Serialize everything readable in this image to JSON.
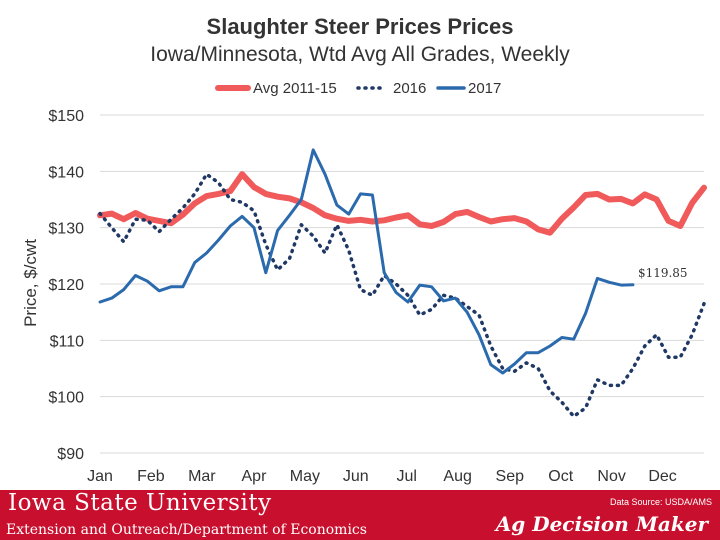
{
  "chart_data": {
    "type": "line",
    "title": "Slaughter Steer Prices Prices",
    "subtitle": "Iowa/Minnesota, Wtd Avg All Grades, Weekly",
    "ylabel": "Price, $/cwt",
    "xlabel": "",
    "ylim": [
      90,
      150
    ],
    "yticks": [
      90,
      100,
      110,
      120,
      130,
      140,
      150
    ],
    "ytick_labels": [
      "$90",
      "$100",
      "$110",
      "$120",
      "$130",
      "$140",
      "$150"
    ],
    "xlim": [
      1,
      52
    ],
    "xticks": [
      1,
      5.3,
      9.6,
      14,
      18.3,
      22.6,
      26.9,
      31.2,
      35.6,
      39.9,
      44.2,
      48.5
    ],
    "xtick_labels": [
      "Jan",
      "Feb",
      "Mar",
      "Apr",
      "May",
      "Jun",
      "Jul",
      "Aug",
      "Sep",
      "Oct",
      "Nov",
      "Dec"
    ],
    "legend_position": "top-center",
    "annotations": [
      {
        "text": "$119.85",
        "x": 46,
        "y": 119.85
      }
    ],
    "series": [
      {
        "name": "Avg 2011-15",
        "style": "solid-thick",
        "color": "#f05a5a",
        "values": [
          132.2,
          132.5,
          131.5,
          132.6,
          131.6,
          131.2,
          130.8,
          132.3,
          134.3,
          135.6,
          136.0,
          136.5,
          139.5,
          137.2,
          136.0,
          135.5,
          135.2,
          134.5,
          133.5,
          132.2,
          131.6,
          131.2,
          131.4,
          131.1,
          131.3,
          131.8,
          132.2,
          130.6,
          130.3,
          131.0,
          132.4,
          132.8,
          131.9,
          131.1,
          131.5,
          131.7,
          131.1,
          129.7,
          129.1,
          131.6,
          133.6,
          135.8,
          136.0,
          135.0,
          135.1,
          134.3,
          135.9,
          135.0,
          131.2,
          130.3,
          134.4,
          137.1
        ]
      },
      {
        "name": "2016",
        "style": "dotted",
        "color": "#1f3864",
        "values": [
          132.5,
          130.0,
          127.5,
          131.5,
          131.3,
          129.3,
          131.5,
          133.5,
          136.0,
          139.5,
          138.0,
          135.0,
          134.5,
          133.0,
          127.0,
          122.5,
          124.5,
          130.5,
          128.5,
          125.5,
          130.5,
          126.0,
          119.0,
          118.0,
          121.5,
          120.0,
          118.0,
          114.5,
          115.5,
          118.0,
          117.5,
          116.0,
          114.5,
          109.0,
          105.0,
          104.5,
          106.0,
          105.0,
          101.0,
          99.0,
          96.5,
          98.0,
          103.0,
          102.0,
          102.0,
          105.0,
          109.0,
          111.0,
          107.0,
          107.0,
          111.0,
          116.5
        ]
      },
      {
        "name": "2017",
        "style": "solid",
        "color": "#2a6aad",
        "values": [
          116.8,
          117.5,
          119.0,
          121.5,
          120.5,
          118.8,
          119.5,
          119.5,
          123.8,
          125.5,
          127.8,
          130.3,
          132.0,
          130.0,
          122.0,
          129.5,
          132.2,
          135.0,
          143.8,
          139.5,
          134.0,
          132.4,
          136.0,
          135.8,
          122.0,
          118.5,
          116.8,
          119.8,
          119.5,
          117.0,
          117.5,
          115.0,
          111.0,
          105.7,
          104.2,
          105.8,
          107.8,
          107.8,
          109.0,
          110.5,
          110.2,
          114.8,
          121.0,
          120.3,
          119.8,
          119.85
        ]
      }
    ]
  },
  "legend": {
    "items": [
      "Avg 2011-15",
      "2016",
      "2017"
    ]
  },
  "footer": {
    "university": "Iowa State University",
    "extension": "Extension and Outreach/Department of Economics",
    "source": "Data Source: USDA/AMS",
    "brand": "Ag Decision Maker"
  },
  "colors": {
    "footer_bg": "#c8102e",
    "avg_line": "#f05a5a",
    "line_2016": "#1f3864",
    "line_2017": "#2a6aad"
  }
}
